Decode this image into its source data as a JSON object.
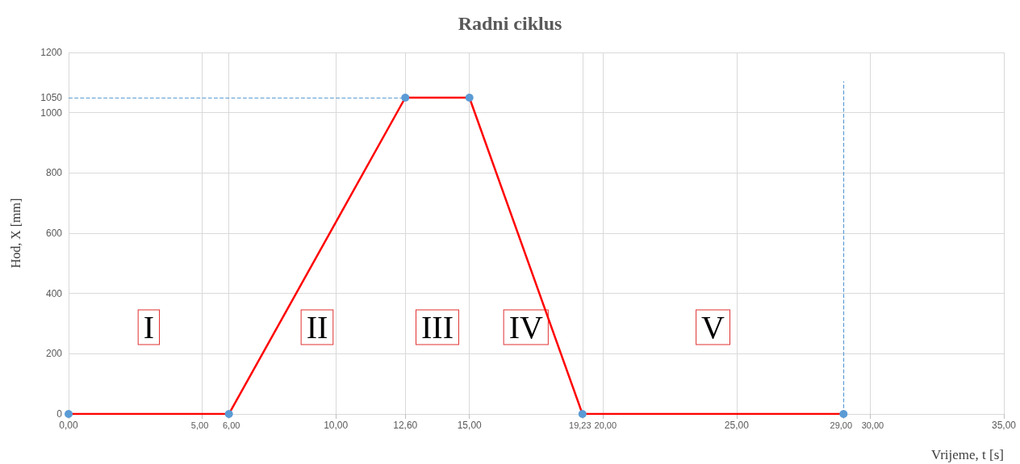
{
  "chart_data": {
    "type": "line",
    "title": "Radni ciklus",
    "xlabel": "Vrijeme, t [s]",
    "ylabel": "Hod, X [mm]",
    "x": [
      0,
      6,
      12.6,
      15,
      19.23,
      29
    ],
    "series": [
      {
        "color": "#ff0000",
        "values": [
          0,
          0,
          1050,
          1050,
          0,
          0
        ]
      }
    ],
    "xlim": [
      0,
      35
    ],
    "xticks": [
      {
        "value": 0,
        "label": "0,00"
      },
      {
        "value": 5,
        "label": "5,00"
      },
      {
        "value": 6,
        "label": "6,00"
      },
      {
        "value": 10,
        "label": "10,00"
      },
      {
        "value": 12.6,
        "label": "12,60"
      },
      {
        "value": 15,
        "label": "15,00"
      },
      {
        "value": 19.23,
        "label": "19,23"
      },
      {
        "value": 20,
        "label": "20,00"
      },
      {
        "value": 25,
        "label": "25,00"
      },
      {
        "value": 29,
        "label": "29,00"
      },
      {
        "value": 30,
        "label": "30,00"
      },
      {
        "value": 35,
        "label": "35,00"
      }
    ],
    "ylim": [
      0,
      1200
    ],
    "yticks": [
      0,
      200,
      400,
      600,
      800,
      1000,
      1050,
      1200
    ],
    "grid": true,
    "marker": "circle",
    "line_style": "solid",
    "ref_lines": [
      {
        "axis": "y",
        "value": 1050,
        "color": "#5b9bd5",
        "line_style": "dashed"
      },
      {
        "axis": "x",
        "value": 29,
        "color": "#5b9bd5",
        "line_style": "dashed"
      }
    ],
    "annotations": [
      "I",
      "II",
      "III",
      "IV",
      "V"
    ]
  }
}
